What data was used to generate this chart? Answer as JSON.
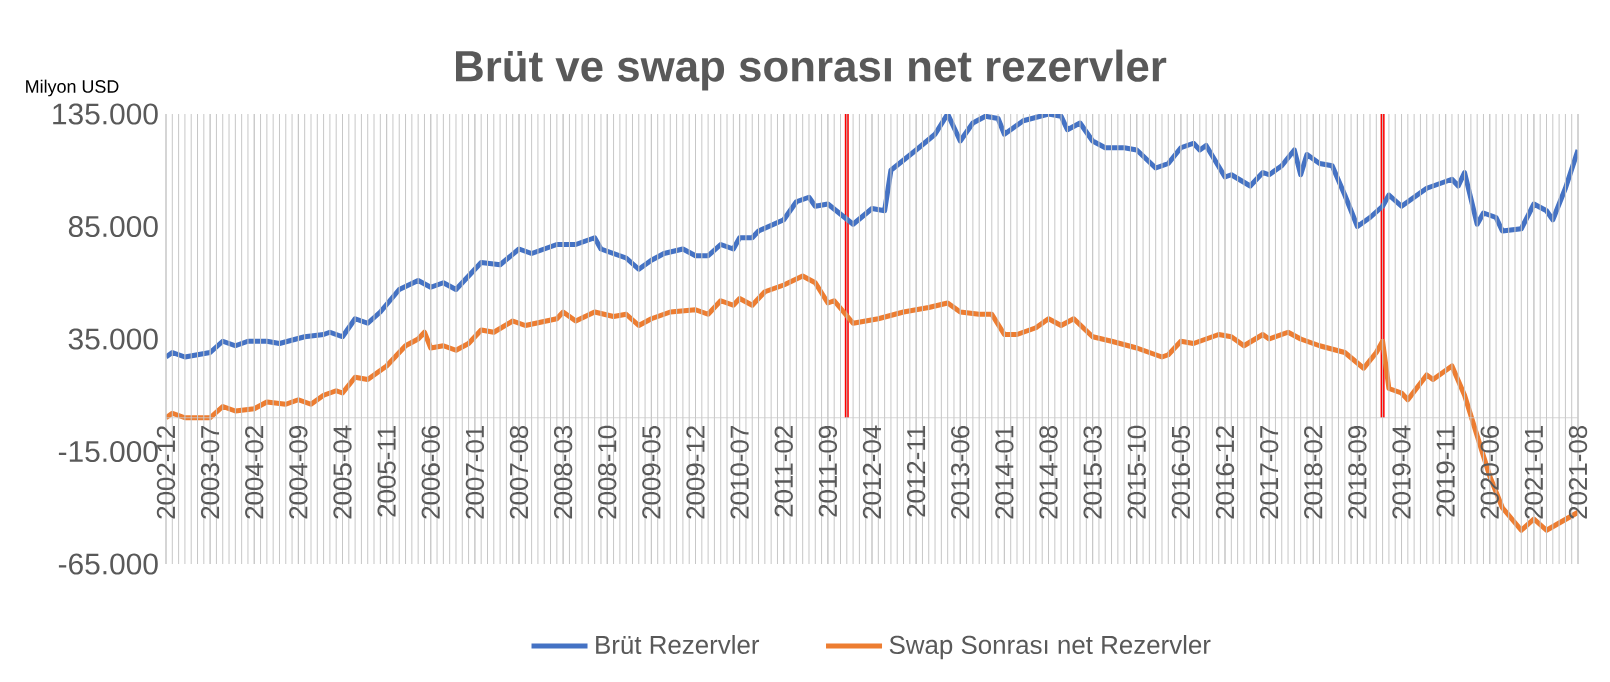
{
  "chart_data": {
    "type": "line",
    "title": "Brüt ve swap sonrası net rezervler",
    "ylabel": "Milyon USD",
    "xlim": [
      "2002-12",
      "2021-08"
    ],
    "xticks": [
      "2002-12",
      "2003-07",
      "2004-02",
      "2004-09",
      "2005-04",
      "2005-11",
      "2006-06",
      "2007-01",
      "2007-08",
      "2008-03",
      "2008-10",
      "2009-05",
      "2009-12",
      "2010-07",
      "2011-02",
      "2011-09",
      "2012-04",
      "2012-11",
      "2013-06",
      "2014-01",
      "2014-08",
      "2015-03",
      "2015-10",
      "2016-05",
      "2016-12",
      "2017-07",
      "2018-02",
      "2018-09",
      "2019-04",
      "2019-11",
      "2020-06",
      "2021-01",
      "2021-08"
    ],
    "ylim": [
      -65000,
      135000
    ],
    "yticks": [
      {
        "value": -65000,
        "label": "-65.000"
      },
      {
        "value": -15000,
        "label": "-15.000"
      },
      {
        "value": 35000,
        "label": "35.000"
      },
      {
        "value": 85000,
        "label": "85.000"
      },
      {
        "value": 135000,
        "label": "135.000"
      }
    ],
    "grid": "x",
    "legend": "bottom",
    "marker": "none",
    "line_style": "solid",
    "ref_lines": [
      {
        "axis": "x",
        "value": "2011-12",
        "color": "#ff0000"
      },
      {
        "axis": "x",
        "value": "2019-01",
        "color": "#ff0000"
      }
    ],
    "series": [
      {
        "name": "Brüt Rezervler",
        "color": "#4472c4",
        "x": [
          "2002-12",
          "2003-01",
          "2003-03",
          "2003-07",
          "2003-09",
          "2003-11",
          "2004-01",
          "2004-04",
          "2004-06",
          "2004-10",
          "2005-01",
          "2005-02",
          "2005-04",
          "2005-06",
          "2005-08",
          "2005-10",
          "2006-01",
          "2006-04",
          "2006-06",
          "2006-08",
          "2006-10",
          "2006-12",
          "2007-02",
          "2007-05",
          "2007-08",
          "2007-10",
          "2008-02",
          "2008-05",
          "2008-08",
          "2008-09",
          "2009-01",
          "2009-03",
          "2009-05",
          "2009-07",
          "2009-10",
          "2009-12",
          "2010-02",
          "2010-04",
          "2010-06",
          "2010-07",
          "2010-09",
          "2010-10",
          "2011-02",
          "2011-04",
          "2011-06",
          "2011-07",
          "2011-09",
          "2012-01",
          "2012-04",
          "2012-06",
          "2012-07",
          "2012-11",
          "2013-02",
          "2013-04",
          "2013-06",
          "2013-08",
          "2013-10",
          "2013-12",
          "2014-01",
          "2014-02",
          "2014-04",
          "2014-08",
          "2014-10",
          "2014-11",
          "2015-01",
          "2015-03",
          "2015-05",
          "2015-08",
          "2015-10",
          "2016-01",
          "2016-03",
          "2016-05",
          "2016-07",
          "2016-08",
          "2016-09",
          "2016-12",
          "2017-01",
          "2017-04",
          "2017-06",
          "2017-07",
          "2017-09",
          "2017-11",
          "2017-12",
          "2018-01",
          "2018-03",
          "2018-05",
          "2018-07",
          "2018-09",
          "2018-11",
          "2019-01",
          "2019-02",
          "2019-04",
          "2019-08",
          "2019-12",
          "2020-01",
          "2020-02",
          "2020-04",
          "2020-05",
          "2020-07",
          "2020-08",
          "2020-11",
          "2021-01",
          "2021-03",
          "2021-04",
          "2021-06",
          "2021-08"
        ],
        "values": [
          27000,
          29000,
          27000,
          29000,
          34000,
          32000,
          34000,
          34000,
          33000,
          36000,
          37000,
          38000,
          36000,
          44000,
          42000,
          47000,
          57000,
          61000,
          58000,
          60000,
          57000,
          63000,
          69000,
          68000,
          75000,
          73000,
          77000,
          77000,
          80000,
          75000,
          71000,
          66000,
          70000,
          73000,
          75000,
          72000,
          72000,
          77000,
          75000,
          80000,
          80000,
          83000,
          88000,
          96000,
          98000,
          94000,
          95000,
          86000,
          93000,
          92000,
          110000,
          119000,
          126000,
          135000,
          123000,
          131000,
          134000,
          133000,
          126000,
          128000,
          132000,
          135000,
          134000,
          128000,
          131000,
          123000,
          120000,
          120000,
          119000,
          111000,
          113000,
          120000,
          122000,
          119000,
          121000,
          107000,
          108000,
          103000,
          109000,
          108000,
          112000,
          119000,
          108000,
          117000,
          113000,
          112000,
          99000,
          85000,
          89000,
          94000,
          99000,
          94000,
          102000,
          106000,
          103000,
          109000,
          86000,
          91000,
          89000,
          83000,
          84000,
          95000,
          92000,
          88000,
          102000,
          119000
        ]
      },
      {
        "name": "Swap Sonrası net Rezervler",
        "color": "#ed7d31",
        "x": [
          "2002-12",
          "2003-01",
          "2003-03",
          "2003-07",
          "2003-09",
          "2003-11",
          "2004-02",
          "2004-04",
          "2004-07",
          "2004-09",
          "2004-11",
          "2005-01",
          "2005-03",
          "2005-04",
          "2005-06",
          "2005-08",
          "2005-11",
          "2006-02",
          "2006-04",
          "2006-05",
          "2006-06",
          "2006-08",
          "2006-10",
          "2006-12",
          "2007-02",
          "2007-04",
          "2007-07",
          "2007-09",
          "2008-02",
          "2008-03",
          "2008-05",
          "2008-08",
          "2008-11",
          "2009-01",
          "2009-03",
          "2009-05",
          "2009-08",
          "2009-12",
          "2010-02",
          "2010-04",
          "2010-06",
          "2010-07",
          "2010-09",
          "2010-11",
          "2011-02",
          "2011-05",
          "2011-07",
          "2011-09",
          "2011-10",
          "2012-01",
          "2012-03",
          "2012-05",
          "2012-09",
          "2013-01",
          "2013-04",
          "2013-06",
          "2013-09",
          "2013-11",
          "2014-01",
          "2014-03",
          "2014-06",
          "2014-08",
          "2014-10",
          "2014-12",
          "2015-03",
          "2015-06",
          "2015-10",
          "2016-02",
          "2016-03",
          "2016-05",
          "2016-07",
          "2016-11",
          "2017-01",
          "2017-03",
          "2017-06",
          "2017-07",
          "2017-10",
          "2017-12",
          "2018-03",
          "2018-07",
          "2018-10",
          "2018-12",
          "2019-01",
          "2019-02",
          "2019-04",
          "2019-05",
          "2019-08",
          "2019-09",
          "2019-12",
          "2020-02",
          "2020-04",
          "2020-06",
          "2020-08",
          "2020-11",
          "2021-01",
          "2021-03",
          "2021-08"
        ],
        "values": [
          0,
          2000,
          0,
          0,
          5000,
          3000,
          4000,
          7000,
          6000,
          8000,
          6000,
          10000,
          12000,
          11000,
          18000,
          17000,
          23000,
          32000,
          35000,
          38000,
          31000,
          32000,
          30000,
          33000,
          39000,
          38000,
          43000,
          41000,
          44000,
          47000,
          43000,
          47000,
          45000,
          46000,
          41000,
          44000,
          47000,
          48000,
          46000,
          52000,
          50000,
          53000,
          50000,
          56000,
          59000,
          63000,
          60000,
          51000,
          52000,
          42000,
          43000,
          44000,
          47000,
          49000,
          51000,
          47000,
          46000,
          46000,
          37000,
          37000,
          40000,
          44000,
          41000,
          44000,
          36000,
          34000,
          31000,
          27000,
          28000,
          34000,
          33000,
          37000,
          36000,
          32000,
          37000,
          35000,
          38000,
          35000,
          32000,
          29000,
          22000,
          29000,
          34000,
          13000,
          11000,
          8000,
          19000,
          17000,
          23000,
          10000,
          -8000,
          -26000,
          -40000,
          -50000,
          -45000,
          -50000,
          -42000
        ]
      }
    ]
  }
}
